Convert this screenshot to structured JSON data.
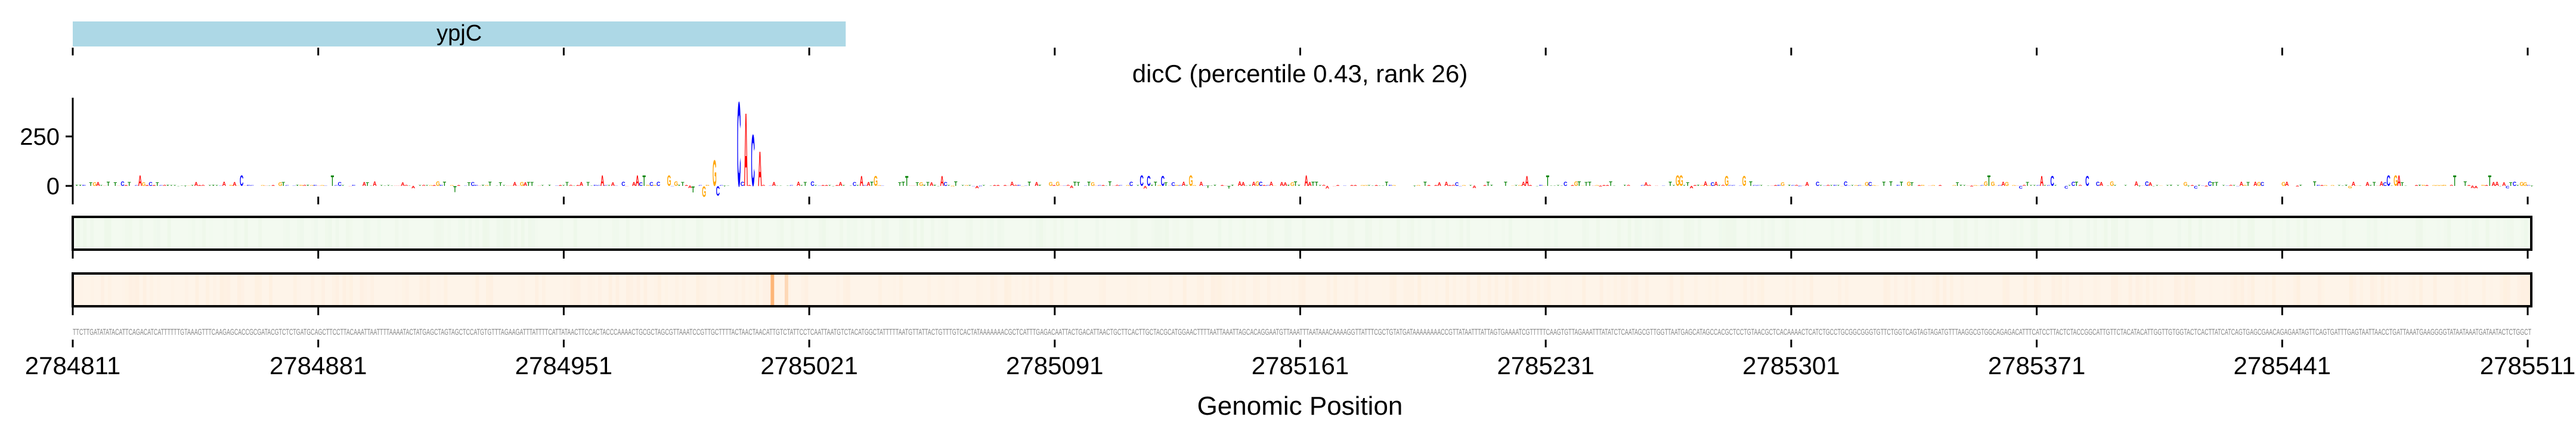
{
  "gene_track": {
    "gene_name": "ypjC",
    "color": "#add8e6",
    "start": 2784811,
    "end": 2785011
  },
  "chart_data": {
    "type": "sequence-logo",
    "title": "dicC (percentile 0.43, rank 26)",
    "xlabel": "Genomic Position",
    "ylabel": "",
    "xlim": [
      2784811,
      2785511
    ],
    "x_ticks": [
      "2784811",
      "2784881",
      "2784951",
      "2785021",
      "2785091",
      "2785161",
      "2785231",
      "2785301",
      "2785371",
      "2785441",
      "2785511"
    ],
    "y_ticks": [
      "0",
      "250"
    ],
    "ylim": [
      -60,
      450
    ],
    "letter_colors": {
      "A": "#ff0000",
      "C": "#0000ff",
      "G": "#ffa500",
      "T": "#008000"
    },
    "peaks": [
      {
        "position": 2784987,
        "base": "T",
        "value": -33
      },
      {
        "position": 2784990,
        "base": "G",
        "value": -55
      },
      {
        "position": 2784993,
        "base": "G",
        "value": 135
      },
      {
        "position": 2784994,
        "base": "C",
        "value": -50
      },
      {
        "position": 2785000,
        "base": "C",
        "value": 440
      },
      {
        "position": 2785002,
        "base": "A",
        "value": 382
      },
      {
        "position": 2785004,
        "base": "C",
        "value": 268
      },
      {
        "position": 2785006,
        "base": "A",
        "value": 181
      }
    ],
    "heatmap_tracks": [
      {
        "colormap": "Greens",
        "base_color": "#f3faf0"
      },
      {
        "colormap": "Oranges",
        "base_color": "#fef4e9",
        "highlight_positions": [
          2785010,
          2785014
        ]
      }
    ],
    "sequence": "TTCTTGATATATACATTCAGACATCATTTTTTGTAAAGTTTCAAGAGCACCGCGATACGTCTCTGATGCAGCTTCCTTACAAATTAATTTTAAAATACTATGAGCTAGTAGCTCCATGTGTTTAGAAGATTTATTTTCATTATAACTTCCACTACCCAAAACTGCGCTAGCGTTAAATCCGTTGCTTTTACTAACTAACATTGTCTATTCCTCAATTAATGTCTACATGGCTATTTTTAATGTTATTACTGTTTGTCACTATAAAAAAACGCTCATTTGAGACAATTACTGACATTAACTGCTTCACTTGCTACGCATGGAACTTTTAATTAAATTAGCACAGGAATGTTAAATTTAATAAACAAAAGGTTATTTCGCTGTATGATAAAAAAAACCGTTATAATTTATTAGTGAAAATCGTTTTTCAAGTGTTAGAAATTTATATCTCAATAGCGTTGGTTAATGAGCATAGCCACGCTCCTGTAACGCTCACAAAACTCATCTGCCTGCGGCGGGTGTTCTGGTCAGTAGTAGATGTTTAAGGCGTGGCAGAGACATTTCATCCTTACTCTACCGGCATTGTTCTACATACATTGGTTGTGGTACTCACTTATCATCAGTGAGCGAACAGAGAATAGTTCAGTGATTTGAGTAATTAACCTGATTAAATGAAGGGGTATAATAAATGATAATACTCTGGCT"
  }
}
